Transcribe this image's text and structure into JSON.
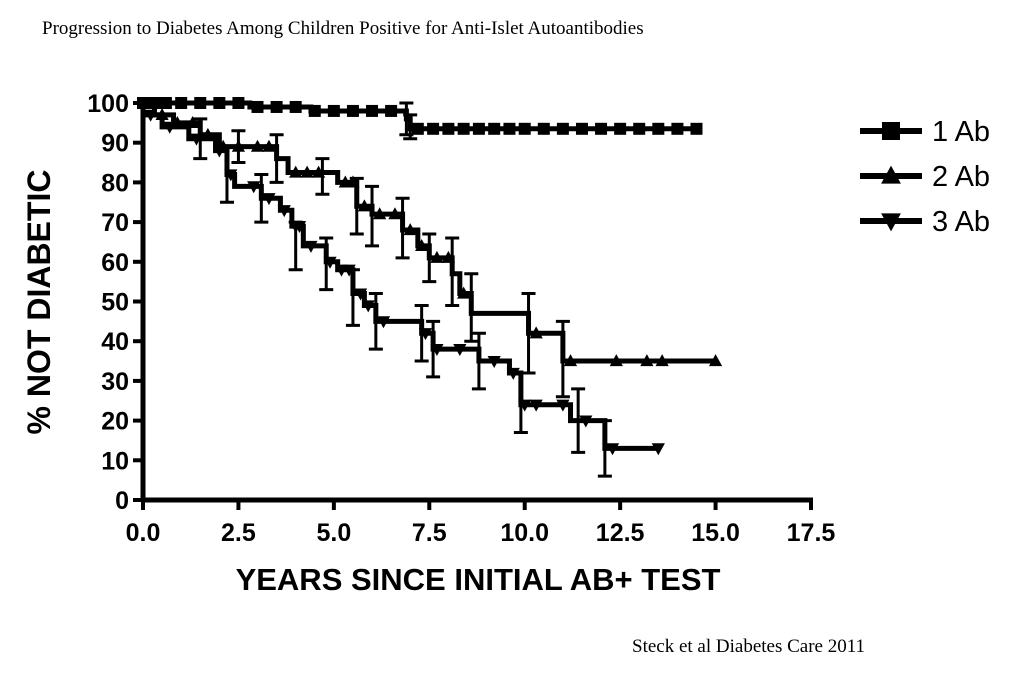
{
  "header": {
    "title": "Progression to Diabetes Among Children Positive for Anti-Islet Autoantibodies"
  },
  "footer": {
    "citation": "Steck et al Diabetes Care 2011"
  },
  "chart_data": {
    "type": "line",
    "subtype": "kaplan-meier step",
    "title": "Progression to Diabetes Among Children Positive for Anti-Islet Autoantibodies",
    "xlabel": "YEARS SINCE INITIAL AB+ TEST",
    "ylabel": "% NOT DIABETIC",
    "xlim": [
      0,
      17.5
    ],
    "ylim": [
      0,
      100
    ],
    "x_ticks": [
      "0.0",
      "2.5",
      "5.0",
      "7.5",
      "10.0",
      "12.5",
      "15.0",
      "17.5"
    ],
    "y_ticks": [
      "0",
      "10",
      "20",
      "30",
      "40",
      "50",
      "60",
      "70",
      "80",
      "90",
      "100"
    ],
    "legend_position": "top-right",
    "series": [
      {
        "name": "1 Ab",
        "marker": "square",
        "steps": [
          [
            0,
            100
          ],
          [
            2.8,
            99
          ],
          [
            4.4,
            98
          ],
          [
            6.9,
            96
          ],
          [
            7.0,
            93.5
          ],
          [
            14.5,
            93.5
          ]
        ],
        "markers": [
          0,
          0.3,
          0.6,
          1.0,
          1.5,
          2.0,
          2.5,
          3.0,
          3.5,
          4.0,
          4.5,
          5.0,
          5.5,
          6.0,
          6.5,
          7.2,
          7.6,
          8.0,
          8.4,
          8.8,
          9.2,
          9.6,
          10.0,
          10.5,
          11.0,
          11.5,
          12.0,
          12.5,
          13.0,
          13.5,
          14.0,
          14.5
        ],
        "error_bars": [
          [
            6.9,
            92,
            100
          ],
          [
            7.0,
            91,
            97
          ]
        ]
      },
      {
        "name": "2 Ab",
        "marker": "triangle-up",
        "steps": [
          [
            0,
            100
          ],
          [
            0.3,
            97
          ],
          [
            0.8,
            95
          ],
          [
            1.5,
            92
          ],
          [
            2.0,
            89
          ],
          [
            3.5,
            86
          ],
          [
            3.8,
            82.5
          ],
          [
            5.1,
            80
          ],
          [
            5.6,
            74
          ],
          [
            6.0,
            72
          ],
          [
            6.8,
            68
          ],
          [
            7.2,
            64
          ],
          [
            7.5,
            61
          ],
          [
            8.1,
            57
          ],
          [
            8.3,
            52
          ],
          [
            8.6,
            47
          ],
          [
            10.1,
            42
          ],
          [
            11.0,
            35
          ],
          [
            15.0,
            35
          ]
        ],
        "markers": [
          0.5,
          0.9,
          1.3,
          1.7,
          2.1,
          2.5,
          3.0,
          3.3,
          4.0,
          4.3,
          4.6,
          5.3,
          5.5,
          5.8,
          6.2,
          6.6,
          7.0,
          7.3,
          7.7,
          8.0,
          8.4,
          10.3,
          11.2,
          12.4,
          13.2,
          13.6,
          15.0
        ],
        "error_bars": [
          [
            1.5,
            86,
            96
          ],
          [
            2.5,
            85,
            93
          ],
          [
            3.5,
            80,
            92
          ],
          [
            4.7,
            77,
            86
          ],
          [
            5.6,
            67,
            81
          ],
          [
            6.0,
            64,
            79
          ],
          [
            6.8,
            61,
            76
          ],
          [
            7.5,
            55,
            67
          ],
          [
            8.1,
            49,
            66
          ],
          [
            8.6,
            40,
            57
          ],
          [
            10.1,
            32,
            52
          ],
          [
            11.0,
            26,
            45
          ]
        ]
      },
      {
        "name": "3 Ab",
        "marker": "triangle-down",
        "steps": [
          [
            0,
            97
          ],
          [
            0.5,
            94
          ],
          [
            1.2,
            91
          ],
          [
            1.9,
            88
          ],
          [
            2.2,
            82
          ],
          [
            2.4,
            79
          ],
          [
            3.1,
            76
          ],
          [
            3.6,
            73
          ],
          [
            3.9,
            69
          ],
          [
            4.2,
            64
          ],
          [
            4.8,
            60
          ],
          [
            5.1,
            58
          ],
          [
            5.5,
            52
          ],
          [
            5.8,
            49
          ],
          [
            6.1,
            45
          ],
          [
            7.3,
            42
          ],
          [
            7.6,
            38
          ],
          [
            8.8,
            35
          ],
          [
            9.6,
            32
          ],
          [
            9.9,
            24
          ],
          [
            11.2,
            20
          ],
          [
            11.4,
            20
          ],
          [
            12.1,
            13
          ],
          [
            13.5,
            13
          ]
        ],
        "markers": [
          0.2,
          0.7,
          1.4,
          2.0,
          2.3,
          2.9,
          3.3,
          3.7,
          4.0,
          4.1,
          4.4,
          4.9,
          5.2,
          5.4,
          5.7,
          5.9,
          6.3,
          7.4,
          7.7,
          8.3,
          9.2,
          9.7,
          10.0,
          10.3,
          11.0,
          11.6,
          12.3,
          13.5
        ],
        "error_bars": [
          [
            2.2,
            75,
            89
          ],
          [
            3.1,
            70,
            82
          ],
          [
            4.0,
            58,
            70
          ],
          [
            4.8,
            53,
            66
          ],
          [
            5.5,
            44,
            58
          ],
          [
            6.1,
            38,
            52
          ],
          [
            7.3,
            35,
            49
          ],
          [
            7.6,
            31,
            45
          ],
          [
            8.8,
            28,
            42
          ],
          [
            9.9,
            17,
            32
          ],
          [
            11.4,
            12,
            28
          ],
          [
            12.1,
            6,
            20
          ]
        ]
      }
    ]
  }
}
